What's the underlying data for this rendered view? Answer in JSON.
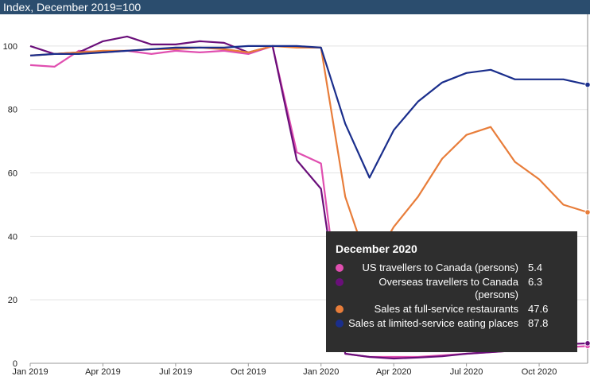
{
  "chart_data": {
    "type": "line",
    "title": "Index, December 2019=100",
    "xlabel": "",
    "ylabel": "",
    "ylim": [
      0,
      110
    ],
    "yticks": [
      0,
      20,
      40,
      60,
      80,
      100
    ],
    "x": [
      "2019-01",
      "2019-02",
      "2019-03",
      "2019-04",
      "2019-05",
      "2019-06",
      "2019-07",
      "2019-08",
      "2019-09",
      "2019-10",
      "2019-11",
      "2019-12",
      "2020-01",
      "2020-02",
      "2020-03",
      "2020-04",
      "2020-05",
      "2020-06",
      "2020-07",
      "2020-08",
      "2020-09",
      "2020-10",
      "2020-11",
      "2020-12"
    ],
    "xtick_labels": [
      {
        "x": "2019-01",
        "label": "Jan 2019"
      },
      {
        "x": "2019-04",
        "label": "Apr 2019"
      },
      {
        "x": "2019-07",
        "label": "Jul 2019"
      },
      {
        "x": "2019-10",
        "label": "Oct 2019"
      },
      {
        "x": "2020-01",
        "label": "Jan 2020"
      },
      {
        "x": "2020-04",
        "label": "Apr 2020"
      },
      {
        "x": "2020-07",
        "label": "Jul 2020"
      },
      {
        "x": "2020-10",
        "label": "Oct 2020"
      }
    ],
    "grid": true,
    "series": [
      {
        "name": "US travellers to Canada (persons)",
        "color": "#e04fb0",
        "values": [
          94.0,
          93.5,
          98.5,
          98.0,
          98.5,
          97.5,
          98.5,
          98.0,
          98.5,
          97.5,
          100.0,
          66.5,
          63.0,
          3.0,
          2.0,
          2.0,
          2.0,
          2.5,
          3.0,
          3.5,
          4.0,
          4.5,
          5.0,
          5.4
        ]
      },
      {
        "name": "Overseas travellers to Canada (persons)",
        "color": "#6a0f7a",
        "values": [
          100.0,
          97.5,
          98.0,
          101.5,
          103.0,
          100.5,
          100.5,
          101.5,
          101.0,
          98.0,
          100.0,
          64.0,
          55.0,
          3.0,
          2.0,
          1.5,
          1.8,
          2.2,
          3.0,
          3.5,
          4.0,
          5.0,
          6.0,
          6.3
        ]
      },
      {
        "name": "Sales at full-service restaurants",
        "color": "#e87d3a",
        "values": [
          97.0,
          97.5,
          98.0,
          98.5,
          98.5,
          99.0,
          99.0,
          99.5,
          99.0,
          98.0,
          100.0,
          99.5,
          99.5,
          52.5,
          30.0,
          43.0,
          52.5,
          64.5,
          72.0,
          74.5,
          63.5,
          58.0,
          50.0,
          47.6
        ]
      },
      {
        "name": "Sales at limited-service eating places",
        "color": "#1a2e8c",
        "values": [
          97.0,
          97.5,
          97.5,
          98.0,
          98.5,
          99.0,
          99.5,
          99.5,
          99.5,
          100.0,
          100.0,
          100.0,
          99.5,
          75.5,
          58.5,
          73.5,
          82.5,
          88.5,
          91.5,
          92.5,
          89.5,
          89.5,
          89.5,
          87.8
        ]
      }
    ],
    "tooltip": {
      "title": "December 2020",
      "rows": [
        {
          "name": "US travellers to Canada (persons)",
          "value": "5.4",
          "color": "#e04fb0"
        },
        {
          "name": "Overseas travellers to Canada (persons)",
          "value": "6.3",
          "color": "#6a0f7a"
        },
        {
          "name": "Sales at full-service restaurants",
          "value": "47.6",
          "color": "#e87d3a"
        },
        {
          "name": "Sales at limited-service eating places",
          "value": "87.8",
          "color": "#1a2e8c"
        }
      ]
    }
  }
}
